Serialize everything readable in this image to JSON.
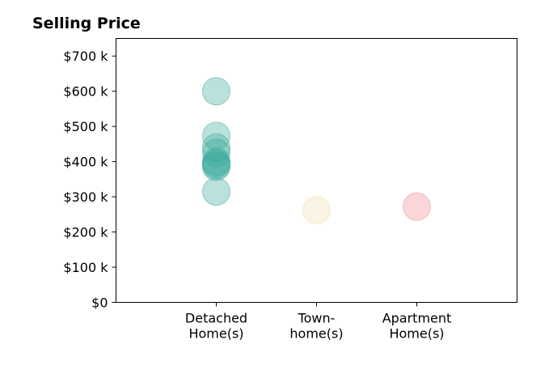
{
  "chart_data": {
    "type": "scatter",
    "title": "Selling Price",
    "xlabel": "",
    "ylabel": "",
    "categories": [
      [
        "Detached",
        "Home(s)"
      ],
      [
        "Town-",
        "home(s)"
      ],
      [
        "Apartment",
        "Home(s)"
      ]
    ],
    "xlim": [
      0,
      4
    ],
    "ylim": [
      0,
      750000
    ],
    "yticks": [
      {
        "value": 0,
        "label": "$0"
      },
      {
        "value": 100000,
        "label": "$100 k"
      },
      {
        "value": 200000,
        "label": "$200 k"
      },
      {
        "value": 300000,
        "label": "$300 k"
      },
      {
        "value": 400000,
        "label": "$400 k"
      },
      {
        "value": 500000,
        "label": "$500 k"
      },
      {
        "value": 600000,
        "label": "$600 k"
      },
      {
        "value": 700000,
        "label": "$700 k"
      }
    ],
    "grid": false,
    "legend": "none",
    "series": [
      {
        "category_index": 0,
        "color": "#3aa99a",
        "values": [
          600000,
          473000,
          440000,
          425000,
          400000,
          395000,
          390000,
          385000,
          315000
        ]
      },
      {
        "category_index": 1,
        "color": "#f3deb0",
        "values": [
          262000
        ]
      },
      {
        "category_index": 2,
        "color": "#f08a92",
        "values": [
          272000
        ]
      }
    ]
  }
}
